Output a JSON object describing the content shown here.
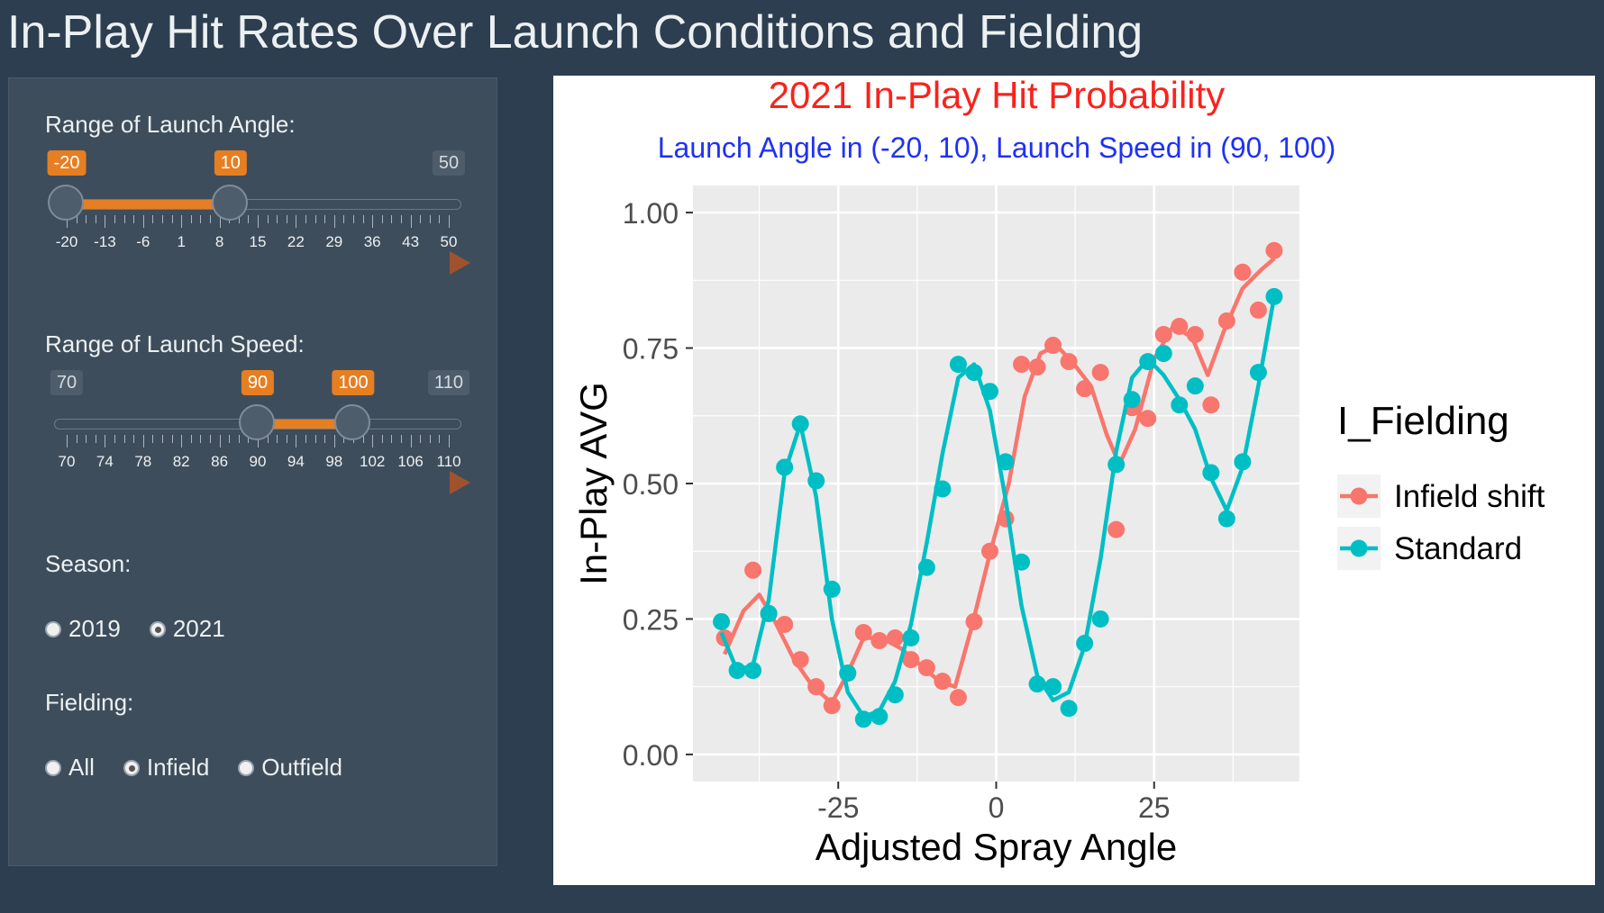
{
  "app": {
    "title": "In-Play Hit Rates Over Launch Conditions and Fielding"
  },
  "controls": {
    "launch_angle": {
      "label": "Range of Launch Angle:",
      "min": -20,
      "max": 50,
      "from": -20,
      "to": 10,
      "min_label": "-20",
      "max_label": "50",
      "from_label": "-20",
      "to_label": "10",
      "tick_labels": [
        "-20",
        "-13",
        "-6",
        "1",
        "8",
        "15",
        "22",
        "29",
        "36",
        "43",
        "50"
      ]
    },
    "launch_speed": {
      "label": "Range of Launch Speed:",
      "min": 70,
      "max": 110,
      "from": 90,
      "to": 100,
      "min_label": "70",
      "max_label": "110",
      "from_label": "90",
      "to_label": "100",
      "tick_labels": [
        "70",
        "74",
        "78",
        "82",
        "86",
        "90",
        "94",
        "98",
        "102",
        "106",
        "110"
      ]
    },
    "season": {
      "label": "Season:",
      "options": [
        "2019",
        "2021"
      ],
      "selected": "2021"
    },
    "fielding": {
      "label": "Fielding:",
      "options": [
        "All",
        "Infield",
        "Outfield"
      ],
      "selected": "Infield"
    }
  },
  "chart_data": {
    "type": "scatter",
    "title": "2021 In-Play Hit Probability",
    "subtitle": "Launch Angle in (-20, 10), Launch Speed in (90, 100)",
    "title_color": "#f8231d",
    "subtitle_color": "#1f31f5",
    "xlabel": "Adjusted Spray Angle",
    "ylabel": "In-Play AVG",
    "xlim": [
      -48,
      48
    ],
    "ylim": [
      -0.05,
      1.05
    ],
    "x_ticks": [
      -25,
      0,
      25
    ],
    "x_tick_labels": [
      "-25",
      "0",
      "25"
    ],
    "y_ticks": [
      0,
      0.25,
      0.5,
      0.75,
      1.0
    ],
    "y_tick_labels": [
      "0.00",
      "0.25",
      "0.50",
      "0.75",
      "1.00"
    ],
    "grid": true,
    "legend_title": "I_Fielding",
    "legend_position": "right",
    "series": [
      {
        "name": "Infield shift",
        "color": "#f8766d",
        "points": [
          [
            -43,
            0.215
          ],
          [
            -38.5,
            0.34
          ],
          [
            -36,
            0.26
          ],
          [
            -33.5,
            0.24
          ],
          [
            -31,
            0.175
          ],
          [
            -28.5,
            0.125
          ],
          [
            -26,
            0.09
          ],
          [
            -23.5,
            0.15
          ],
          [
            -21,
            0.225
          ],
          [
            -18.5,
            0.21
          ],
          [
            -16,
            0.215
          ],
          [
            -13.5,
            0.175
          ],
          [
            -11,
            0.16
          ],
          [
            -8.5,
            0.135
          ],
          [
            -6,
            0.105
          ],
          [
            -3.5,
            0.245
          ],
          [
            -1,
            0.375
          ],
          [
            1.5,
            0.435
          ],
          [
            4,
            0.72
          ],
          [
            6.5,
            0.715
          ],
          [
            9,
            0.755
          ],
          [
            11.5,
            0.725
          ],
          [
            14,
            0.675
          ],
          [
            16.5,
            0.705
          ],
          [
            19,
            0.415
          ],
          [
            21.5,
            0.64
          ],
          [
            24,
            0.62
          ],
          [
            26.5,
            0.775
          ],
          [
            29,
            0.79
          ],
          [
            31.5,
            0.775
          ],
          [
            34,
            0.645
          ],
          [
            36.5,
            0.8
          ],
          [
            39,
            0.89
          ],
          [
            41.5,
            0.82
          ],
          [
            44,
            0.93
          ]
        ],
        "smooth": [
          [
            -43,
            0.185
          ],
          [
            -40,
            0.265
          ],
          [
            -37.5,
            0.295
          ],
          [
            -35,
            0.245
          ],
          [
            -32,
            0.175
          ],
          [
            -29,
            0.125
          ],
          [
            -26,
            0.095
          ],
          [
            -23.5,
            0.15
          ],
          [
            -21,
            0.215
          ],
          [
            -18,
            0.215
          ],
          [
            -15,
            0.195
          ],
          [
            -12,
            0.165
          ],
          [
            -9,
            0.135
          ],
          [
            -6.5,
            0.125
          ],
          [
            -4,
            0.23
          ],
          [
            -1,
            0.37
          ],
          [
            2,
            0.5
          ],
          [
            4.5,
            0.66
          ],
          [
            7,
            0.74
          ],
          [
            9.5,
            0.755
          ],
          [
            12,
            0.725
          ],
          [
            15,
            0.68
          ],
          [
            17.5,
            0.59
          ],
          [
            19.5,
            0.535
          ],
          [
            22,
            0.6
          ],
          [
            25,
            0.73
          ],
          [
            28,
            0.79
          ],
          [
            31,
            0.77
          ],
          [
            33.5,
            0.7
          ],
          [
            36,
            0.78
          ],
          [
            39,
            0.86
          ],
          [
            42,
            0.895
          ],
          [
            44,
            0.915
          ]
        ]
      },
      {
        "name": "Standard",
        "color": "#00bfc4",
        "points": [
          [
            -43.5,
            0.245
          ],
          [
            -41,
            0.155
          ],
          [
            -38.5,
            0.155
          ],
          [
            -36,
            0.26
          ],
          [
            -33.5,
            0.53
          ],
          [
            -31,
            0.61
          ],
          [
            -28.5,
            0.505
          ],
          [
            -26,
            0.305
          ],
          [
            -23.5,
            0.15
          ],
          [
            -21,
            0.065
          ],
          [
            -18.5,
            0.07
          ],
          [
            -16,
            0.11
          ],
          [
            -13.5,
            0.215
          ],
          [
            -11,
            0.345
          ],
          [
            -8.5,
            0.49
          ],
          [
            -6,
            0.72
          ],
          [
            -3.5,
            0.705
          ],
          [
            -1,
            0.67
          ],
          [
            1.5,
            0.54
          ],
          [
            4,
            0.355
          ],
          [
            6.5,
            0.13
          ],
          [
            9,
            0.125
          ],
          [
            11.5,
            0.085
          ],
          [
            14,
            0.205
          ],
          [
            16.5,
            0.25
          ],
          [
            19,
            0.535
          ],
          [
            21.5,
            0.655
          ],
          [
            24,
            0.725
          ],
          [
            26.5,
            0.74
          ],
          [
            29,
            0.645
          ],
          [
            31.5,
            0.68
          ],
          [
            34,
            0.52
          ],
          [
            36.5,
            0.435
          ],
          [
            39,
            0.54
          ],
          [
            41.5,
            0.705
          ],
          [
            44,
            0.845
          ]
        ],
        "smooth": [
          [
            -43.5,
            0.225
          ],
          [
            -41,
            0.155
          ],
          [
            -38.5,
            0.165
          ],
          [
            -36,
            0.285
          ],
          [
            -33.5,
            0.52
          ],
          [
            -31,
            0.61
          ],
          [
            -28.5,
            0.475
          ],
          [
            -26,
            0.25
          ],
          [
            -23.5,
            0.115
          ],
          [
            -21,
            0.07
          ],
          [
            -18.5,
            0.08
          ],
          [
            -16,
            0.135
          ],
          [
            -13.5,
            0.24
          ],
          [
            -11,
            0.39
          ],
          [
            -8.5,
            0.555
          ],
          [
            -6,
            0.695
          ],
          [
            -3.5,
            0.72
          ],
          [
            -1,
            0.635
          ],
          [
            1.5,
            0.47
          ],
          [
            4,
            0.275
          ],
          [
            6.5,
            0.145
          ],
          [
            9,
            0.1
          ],
          [
            11.5,
            0.115
          ],
          [
            14,
            0.2
          ],
          [
            16.5,
            0.36
          ],
          [
            19,
            0.56
          ],
          [
            21.5,
            0.695
          ],
          [
            24,
            0.73
          ],
          [
            26.5,
            0.7
          ],
          [
            29,
            0.655
          ],
          [
            31.5,
            0.6
          ],
          [
            34,
            0.51
          ],
          [
            36.5,
            0.45
          ],
          [
            39,
            0.53
          ],
          [
            41.5,
            0.68
          ],
          [
            44,
            0.845
          ]
        ]
      }
    ]
  }
}
